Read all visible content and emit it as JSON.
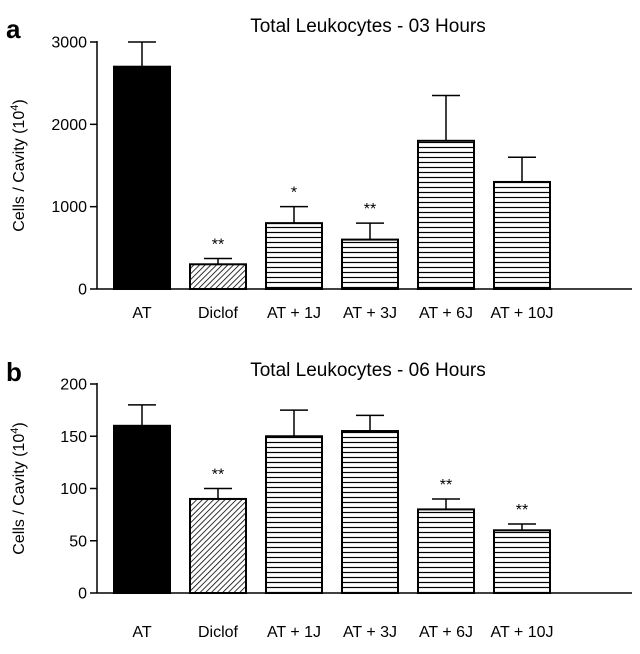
{
  "chart_data": [
    {
      "panel": "a",
      "type": "bar",
      "title": "Total Leukocytes - 03 Hours",
      "ylabel": "Cells / Cavity (10",
      "ylabel_sup": "4",
      "ylabel_close": ")",
      "ylim": [
        0,
        3000
      ],
      "yticks": [
        "0",
        "1000",
        "2000",
        "3000"
      ],
      "ytick_values": [
        0,
        1000,
        2000,
        3000
      ],
      "categories": [
        "AT",
        "Diclof",
        "AT + 1J",
        "AT + 3J",
        "AT + 6J",
        "AT + 10J"
      ],
      "values": [
        2700,
        300,
        800,
        600,
        1800,
        1300
      ],
      "errors": [
        300,
        70,
        200,
        200,
        550,
        300
      ],
      "significance": [
        "",
        "**",
        "*",
        "**",
        "",
        ""
      ],
      "fills": [
        "solid",
        "diagonal",
        "horizontal",
        "horizontal",
        "horizontal",
        "horizontal"
      ]
    },
    {
      "panel": "b",
      "type": "bar",
      "title": "Total Leukocytes - 06 Hours",
      "ylabel": "Cells / Cavity (10",
      "ylabel_sup": "4",
      "ylabel_close": ")",
      "ylim": [
        0,
        200
      ],
      "yticks": [
        "0",
        "50",
        "100",
        "150",
        "200"
      ],
      "ytick_values": [
        0,
        50,
        100,
        150,
        200
      ],
      "categories": [
        "AT",
        "Diclof",
        "AT + 1J",
        "AT + 3J",
        "AT + 6J",
        "AT + 10J"
      ],
      "values": [
        160,
        90,
        150,
        155,
        80,
        60
      ],
      "errors": [
        20,
        10,
        25,
        15,
        10,
        6
      ],
      "significance": [
        "",
        "**",
        "",
        "",
        "**",
        "**"
      ],
      "fills": [
        "solid",
        "diagonal",
        "horizontal",
        "horizontal",
        "horizontal",
        "horizontal"
      ]
    }
  ]
}
